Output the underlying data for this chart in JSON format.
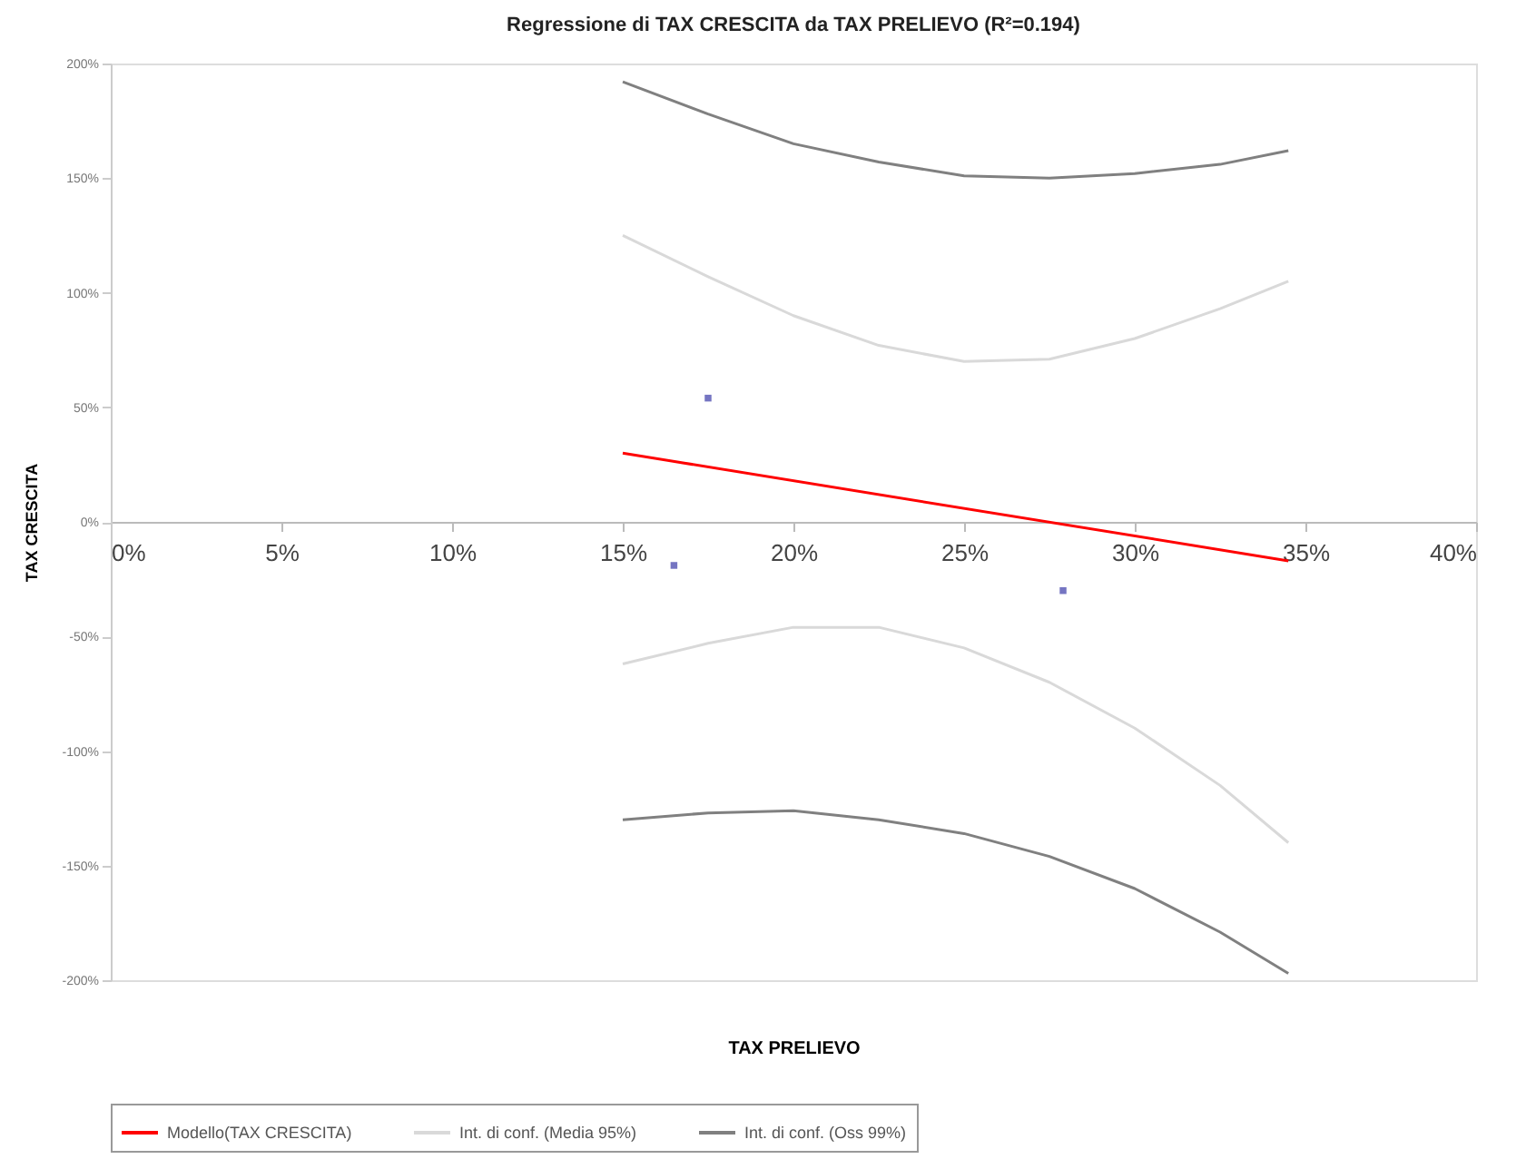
{
  "chart_data": {
    "type": "line",
    "title": "Regressione di TAX CRESCITA da TAX PRELIEVO (R²=0.194)",
    "xlabel": "TAX PRELIEVO",
    "ylabel": "TAX CRESCITA",
    "xlim": [
      0,
      40
    ],
    "xticks": [
      {
        "value": 0,
        "label": "0%"
      },
      {
        "value": 5,
        "label": "5%"
      },
      {
        "value": 10,
        "label": "10%"
      },
      {
        "value": 15,
        "label": "15%"
      },
      {
        "value": 20,
        "label": "20%"
      },
      {
        "value": 25,
        "label": "25%"
      },
      {
        "value": 30,
        "label": "30%"
      },
      {
        "value": 35,
        "label": "35%"
      },
      {
        "value": 40,
        "label": "40%"
      }
    ],
    "ylim": [
      -200,
      200
    ],
    "yticks": [
      {
        "value": -200,
        "label": "-200%"
      },
      {
        "value": -150,
        "label": "-150%"
      },
      {
        "value": -100,
        "label": "-100%"
      },
      {
        "value": -50,
        "label": "-50%"
      },
      {
        "value": 0,
        "label": "0%"
      },
      {
        "value": 50,
        "label": "50%"
      },
      {
        "value": 100,
        "label": "100%"
      },
      {
        "value": 150,
        "label": "150%"
      },
      {
        "value": 200,
        "label": "200%"
      }
    ],
    "legend": "bottom",
    "grid": false,
    "line_style": "solid",
    "series": [
      {
        "type": "scatter",
        "color": "#3a3aa8",
        "marker": "square",
        "x": [
          16.5,
          17.5,
          27.9
        ],
        "values": [
          -19,
          54,
          -30
        ]
      },
      {
        "name": "Modello(TAX CRESCITA)",
        "color": "#ff0000",
        "x": [
          15,
          34.5
        ],
        "values": [
          30,
          -17
        ]
      },
      {
        "name": "Int. di conf. (Media 95%)",
        "color": "#d9d9d9",
        "x": [
          15,
          17.5,
          20,
          22.5,
          25,
          27.5,
          30,
          32.5,
          34.5
        ],
        "values": [
          125,
          107,
          90,
          77,
          70,
          71,
          80,
          93,
          105
        ]
      },
      {
        "color": "#d9d9d9",
        "x": [
          15,
          17.5,
          20,
          22.5,
          25,
          27.5,
          30,
          32.5,
          34.5
        ],
        "values": [
          -62,
          -53,
          -46,
          -46,
          -55,
          -70,
          -90,
          -115,
          -140
        ]
      },
      {
        "name": "Int. di conf. (Oss 99%)",
        "color": "#808080",
        "x": [
          15,
          17.5,
          20,
          22.5,
          25,
          27.5,
          30,
          32.5,
          34.5
        ],
        "values": [
          192,
          178,
          165,
          157,
          151,
          150,
          152,
          156,
          162
        ]
      },
      {
        "color": "#808080",
        "x": [
          15,
          17.5,
          20,
          22.5,
          25,
          27.5,
          30,
          32.5,
          34.5
        ],
        "values": [
          -130,
          -127,
          -126,
          -130,
          -136,
          -146,
          -160,
          -179,
          -197
        ]
      }
    ]
  }
}
